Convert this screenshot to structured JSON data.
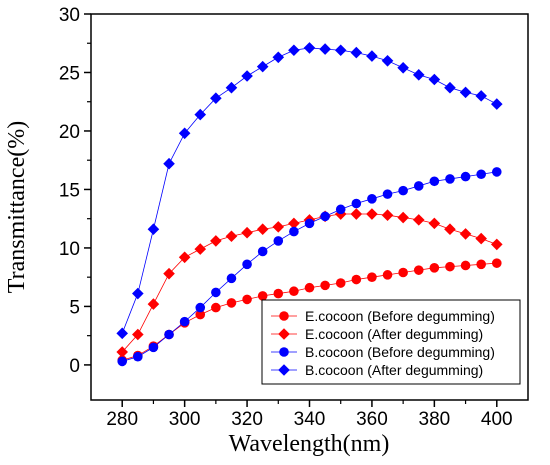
{
  "chart_data": {
    "type": "line",
    "xlabel": "Wavelength(nm)",
    "ylabel": "Transmittance(%)",
    "xlim": [
      270,
      410
    ],
    "ylim": [
      -3,
      30
    ],
    "x_ticks": [
      280,
      300,
      320,
      340,
      360,
      380,
      400
    ],
    "y_ticks": [
      0,
      5,
      10,
      15,
      20,
      25,
      30
    ],
    "x_tick_labels": [
      "280",
      "300",
      "320",
      "340",
      "360",
      "380",
      "400"
    ],
    "y_tick_labels": [
      "0",
      "5",
      "10",
      "15",
      "20",
      "25",
      "30"
    ],
    "grid": false,
    "legend_position": "bottom-right",
    "x": [
      280,
      285,
      290,
      295,
      300,
      305,
      310,
      315,
      320,
      325,
      330,
      335,
      340,
      345,
      350,
      355,
      360,
      365,
      370,
      375,
      380,
      385,
      390,
      395,
      400
    ],
    "series": [
      {
        "name": "E.cocoon (Before degumming)",
        "color": "#ff0000",
        "marker": "circle",
        "values": [
          0.4,
          0.8,
          1.6,
          2.6,
          3.6,
          4.3,
          4.9,
          5.3,
          5.6,
          5.9,
          6.1,
          6.3,
          6.6,
          6.8,
          7.0,
          7.3,
          7.5,
          7.7,
          7.9,
          8.1,
          8.3,
          8.4,
          8.5,
          8.6,
          8.7
        ]
      },
      {
        "name": "E.cocoon (After degumming)",
        "color": "#ff0000",
        "marker": "diamond",
        "values": [
          1.1,
          2.6,
          5.2,
          7.8,
          9.2,
          9.9,
          10.6,
          11.0,
          11.3,
          11.6,
          11.8,
          12.1,
          12.4,
          12.7,
          12.9,
          12.9,
          12.9,
          12.8,
          12.6,
          12.4,
          12.1,
          11.6,
          11.2,
          10.8,
          10.3
        ]
      },
      {
        "name": "B.cocoon (Before degumming)",
        "color": "#0000ff",
        "marker": "circle",
        "values": [
          0.3,
          0.7,
          1.5,
          2.6,
          3.7,
          4.9,
          6.2,
          7.4,
          8.6,
          9.7,
          10.6,
          11.4,
          12.1,
          12.7,
          13.3,
          13.8,
          14.2,
          14.6,
          14.9,
          15.3,
          15.7,
          15.9,
          16.1,
          16.3,
          16.5
        ]
      },
      {
        "name": "B.cocoon (After degumming)",
        "color": "#0000ff",
        "marker": "diamond",
        "values": [
          2.7,
          6.1,
          11.6,
          17.2,
          19.8,
          21.4,
          22.8,
          23.7,
          24.7,
          25.5,
          26.3,
          26.9,
          27.1,
          27.0,
          26.9,
          26.7,
          26.4,
          26.0,
          25.4,
          24.8,
          24.4,
          23.7,
          23.3,
          23.0,
          22.3
        ]
      }
    ]
  }
}
